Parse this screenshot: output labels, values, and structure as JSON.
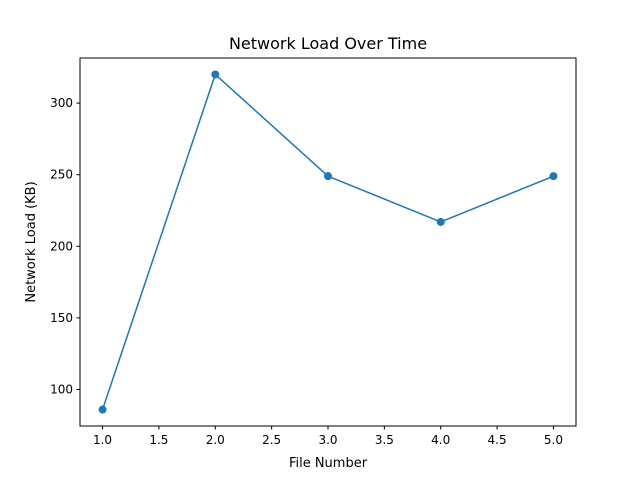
{
  "chart_data": {
    "type": "line",
    "title": "Network Load Over Time",
    "xlabel": "File Number",
    "ylabel": "Network Load (KB)",
    "x": [
      1,
      2,
      3,
      4,
      5
    ],
    "series": [
      {
        "values": [
          86,
          320,
          249,
          217,
          249
        ]
      }
    ],
    "xlim": [
      0.8,
      5.2
    ],
    "ylim": [
      74.5,
      331.5
    ],
    "xticks": [
      1.0,
      1.5,
      2.0,
      2.5,
      3.0,
      3.5,
      4.0,
      4.5,
      5.0
    ],
    "xtick_labels": [
      "1.0",
      "1.5",
      "2.0",
      "2.5",
      "3.0",
      "3.5",
      "4.0",
      "4.5",
      "5.0"
    ],
    "yticks": [
      100,
      150,
      200,
      250,
      300
    ],
    "ytick_labels": [
      "100",
      "150",
      "200",
      "250",
      "300"
    ],
    "grid": false,
    "markers": true,
    "colors": {
      "line": "#1f77b4",
      "axes": "#000000",
      "background": "#ffffff"
    }
  }
}
